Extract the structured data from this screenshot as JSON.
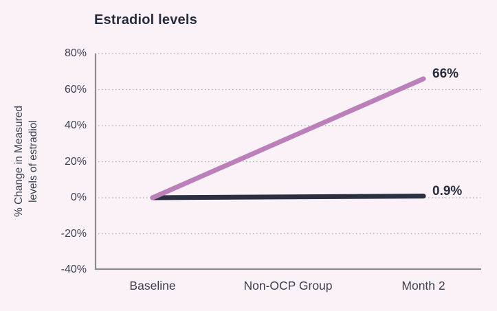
{
  "chart_data": {
    "type": "line",
    "title": "Estradiol levels",
    "ylabel": "% Change in Measured levels of estradiol",
    "ylabel_lines": [
      "% Change in Measured",
      "levels of estradiol"
    ],
    "categories": [
      "Baseline",
      "Non-OCP Group",
      "Month 2"
    ],
    "yticks": [
      80,
      60,
      40,
      20,
      0,
      -20,
      -40
    ],
    "ytick_labels": [
      "80%",
      "60%",
      "40%",
      "20%",
      "0%",
      "-20%",
      "-40%"
    ],
    "ylim": [
      -40,
      80
    ],
    "grid": "horizontal-dotted",
    "legend": "none",
    "series": [
      {
        "key": "purple",
        "end_label": "66%",
        "points": [
          {
            "x": "Baseline",
            "y": 0
          },
          {
            "x": "Month 2",
            "y": 66
          }
        ]
      },
      {
        "key": "dark",
        "end_label": "0.9%",
        "points": [
          {
            "x": "Baseline",
            "y": 0
          },
          {
            "x": "Month 2",
            "y": 0.9
          }
        ]
      }
    ]
  },
  "colors": {
    "background": "#faf2f7",
    "purple": "#bb7fba",
    "dark": "#2b3040",
    "grid": "#a9a9af",
    "axis": "#8b8b92",
    "text_primary": "#272c3e",
    "text_secondary": "#3a4050"
  }
}
